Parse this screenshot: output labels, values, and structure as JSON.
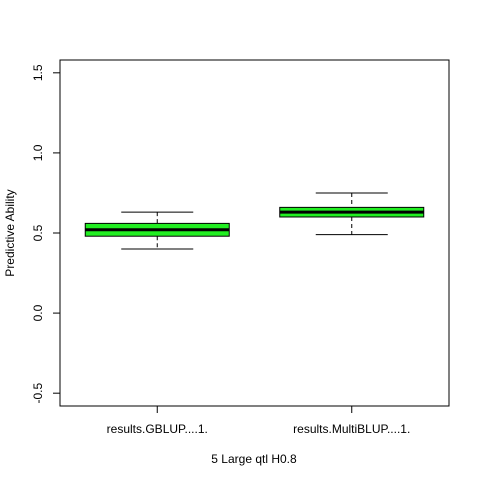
{
  "chart_data": {
    "type": "box",
    "title": "",
    "xlabel": "5 Large qtl H0.8",
    "ylabel": "Predictive Ability",
    "ylim": [
      -0.58,
      1.58
    ],
    "yticks": [
      -0.5,
      0.0,
      0.5,
      1.0,
      1.5
    ],
    "ytick_labels": [
      "-0.5",
      "0.0",
      "0.5",
      "1.0",
      "1.5"
    ],
    "grid": false,
    "box_color": "#22ee22",
    "categories": [
      "results.GBLUP....1.",
      "results.MultiBLUP....1."
    ],
    "boxes": [
      {
        "label": "results.GBLUP....1.",
        "whisker_low": 0.4,
        "q1": 0.48,
        "median": 0.52,
        "q3": 0.56,
        "whisker_high": 0.63
      },
      {
        "label": "results.MultiBLUP....1.",
        "whisker_low": 0.49,
        "q1": 0.6,
        "median": 0.63,
        "q3": 0.66,
        "whisker_high": 0.75
      }
    ]
  }
}
